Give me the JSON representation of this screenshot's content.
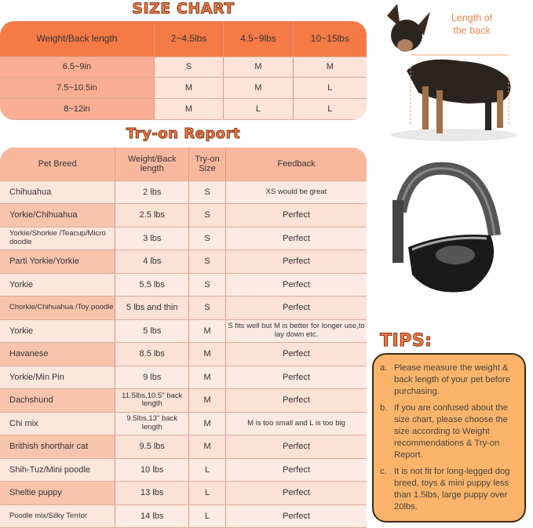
{
  "size_chart": {
    "title": "SIZE CHART",
    "headers": [
      "Weight/Back length",
      "2~4.5lbs",
      "4.5~9lbs",
      "10~15lbs"
    ],
    "rows": [
      [
        "6.5~9in",
        "S",
        "M",
        "M"
      ],
      [
        "7.5~10.5in",
        "M",
        "M",
        "L"
      ],
      [
        "8~12in",
        "M",
        "L",
        "L"
      ]
    ]
  },
  "tryon": {
    "title": "Try-on Report",
    "headers": [
      "Pet Breed",
      "Weight/Back length",
      "Try-on Size",
      "Feedback"
    ],
    "rows": [
      [
        "Chihuahua",
        "2 lbs",
        "S",
        "XS would be great"
      ],
      [
        "Yorkie/Chihuahua",
        "2.5 lbs",
        "S",
        "Perfect"
      ],
      [
        "Yorkie/Shorkie /Teacup/Micro doodle",
        "3 lbs",
        "S",
        "Perfect"
      ],
      [
        "Parti Yorkie/Yorkie",
        "4 lbs",
        "S",
        "Perfect"
      ],
      [
        "Yorkie",
        "5.5 lbs",
        "S",
        "Perfect"
      ],
      [
        "Chorkie/Chihuahua /Toy poodle",
        "5 lbs and thin",
        "S",
        "Perfect"
      ],
      [
        "Yorkie",
        "5 lbs",
        "M",
        "S fits well but M is better for longer use,to lay down etc."
      ],
      [
        "Havanese",
        "8.5 lbs",
        "M",
        "Perfect"
      ],
      [
        "Yorkie/Min Pin",
        "9 lbs",
        "M",
        "Perfect"
      ],
      [
        "Dachshund",
        "11.5lbs,10.5\" back length",
        "M",
        "Perfect"
      ],
      [
        "Chi mix",
        "9.5lbs,13\" back length",
        "M",
        "M is too small and L is too big"
      ],
      [
        "Brithish shorthair cat",
        "9.5 lbs",
        "M",
        "Perfect"
      ],
      [
        "Shih-Tuz/Mini poodle",
        "10 lbs",
        "L",
        "Perfect"
      ],
      [
        "Sheltie puppy",
        "13 lbs",
        "L",
        "Perfect"
      ],
      [
        "Poodle mix/Silky Terrior",
        "14 lbs",
        "L",
        "Perfect"
      ]
    ]
  },
  "dog_image": {
    "label": "Length of the back"
  },
  "tips": {
    "title": "TIPS:",
    "items": [
      {
        "marker": "a.",
        "text": "Please measure the weight & back length of your pet before purchasing."
      },
      {
        "marker": "b.",
        "text": "If you are confused about the size chart, please choose the size according to Weight recommendations & Try-on Report."
      },
      {
        "marker": "c.",
        "text": "It is not fit for long-legged dog breed, toys & mini puppy less than 1.5lbs, large puppy over 20lbs."
      }
    ]
  },
  "colors": {
    "accent": "#f57a45",
    "tips_bg": "#fbb469"
  }
}
